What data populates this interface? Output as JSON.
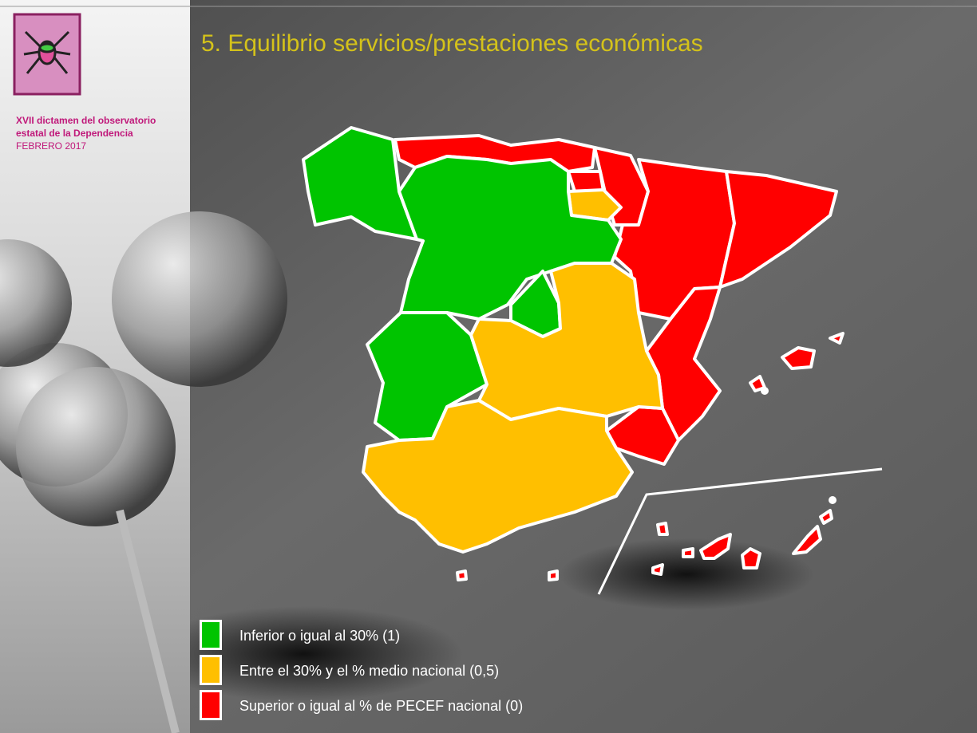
{
  "header": {
    "org_line1": "XVII dictamen del observatorio",
    "org_line2": "estatal de la Dependencia",
    "date": "FEBRERO 2017"
  },
  "title": "5. Equilibrio servicios/prestaciones económicas",
  "legend": [
    {
      "label": "Inferior o igual al 30% (1)",
      "color": "#00c400"
    },
    {
      "label": "Entre el 30% y el % medio nacional (0,5)",
      "color": "#ffbf00"
    },
    {
      "label": "Superior o igual al % de PECEF nacional (0)",
      "color": "#ff0000"
    }
  ]
}
